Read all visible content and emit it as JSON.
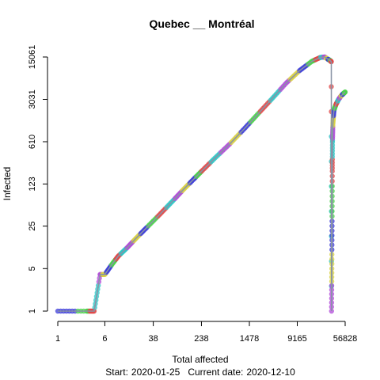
{
  "chart_data": {
    "type": "scatter",
    "title": "Quebec __ Montréal",
    "xlabel": "Total affected",
    "ylabel": "Infected",
    "footer": {
      "start_label": "Start:",
      "start_date": "2020-01-25",
      "current_label": "Current date:",
      "current_date": "2020-12-10"
    },
    "x_scale": "log",
    "y_scale": "log",
    "xlim": [
      1,
      56828
    ],
    "ylim": [
      1,
      15061
    ],
    "x_ticks": [
      1,
      6,
      38,
      238,
      1478,
      9165,
      56828
    ],
    "y_ticks": [
      1,
      5,
      25,
      123,
      610,
      3031,
      15061
    ],
    "grid": false,
    "legend": "none",
    "colors": {
      "line": "#8a94a6",
      "palette": [
        "#3b3bd8",
        "#4ad04a",
        "#e04848",
        "#2bc6c6",
        "#b04ad8",
        "#d8d040"
      ]
    },
    "trajectory": [
      [
        1,
        1
      ],
      [
        3,
        1
      ],
      [
        4,
        1
      ],
      [
        5,
        4
      ],
      [
        6,
        4
      ],
      [
        8,
        6
      ],
      [
        10,
        8
      ],
      [
        14,
        11
      ],
      [
        20,
        16
      ],
      [
        30,
        24
      ],
      [
        50,
        40
      ],
      [
        80,
        65
      ],
      [
        120,
        100
      ],
      [
        180,
        150
      ],
      [
        240,
        200
      ],
      [
        400,
        330
      ],
      [
        700,
        560
      ],
      [
        1200,
        980
      ],
      [
        2000,
        1700
      ],
      [
        3500,
        3100
      ],
      [
        6000,
        5600
      ],
      [
        10000,
        9000
      ],
      [
        16000,
        12800
      ],
      [
        22000,
        14800
      ],
      [
        26000,
        15061
      ],
      [
        29000,
        14000
      ],
      [
        32000,
        13200
      ],
      [
        33500,
        12600
      ],
      [
        33800,
        1
      ],
      [
        34200,
        5
      ],
      [
        34500,
        30
      ],
      [
        34800,
        200
      ],
      [
        35000,
        600
      ],
      [
        35600,
        1200
      ],
      [
        37000,
        2000
      ],
      [
        40000,
        2500
      ],
      [
        44000,
        3000
      ],
      [
        48000,
        3400
      ],
      [
        52000,
        3700
      ],
      [
        56828,
        4000
      ]
    ]
  }
}
